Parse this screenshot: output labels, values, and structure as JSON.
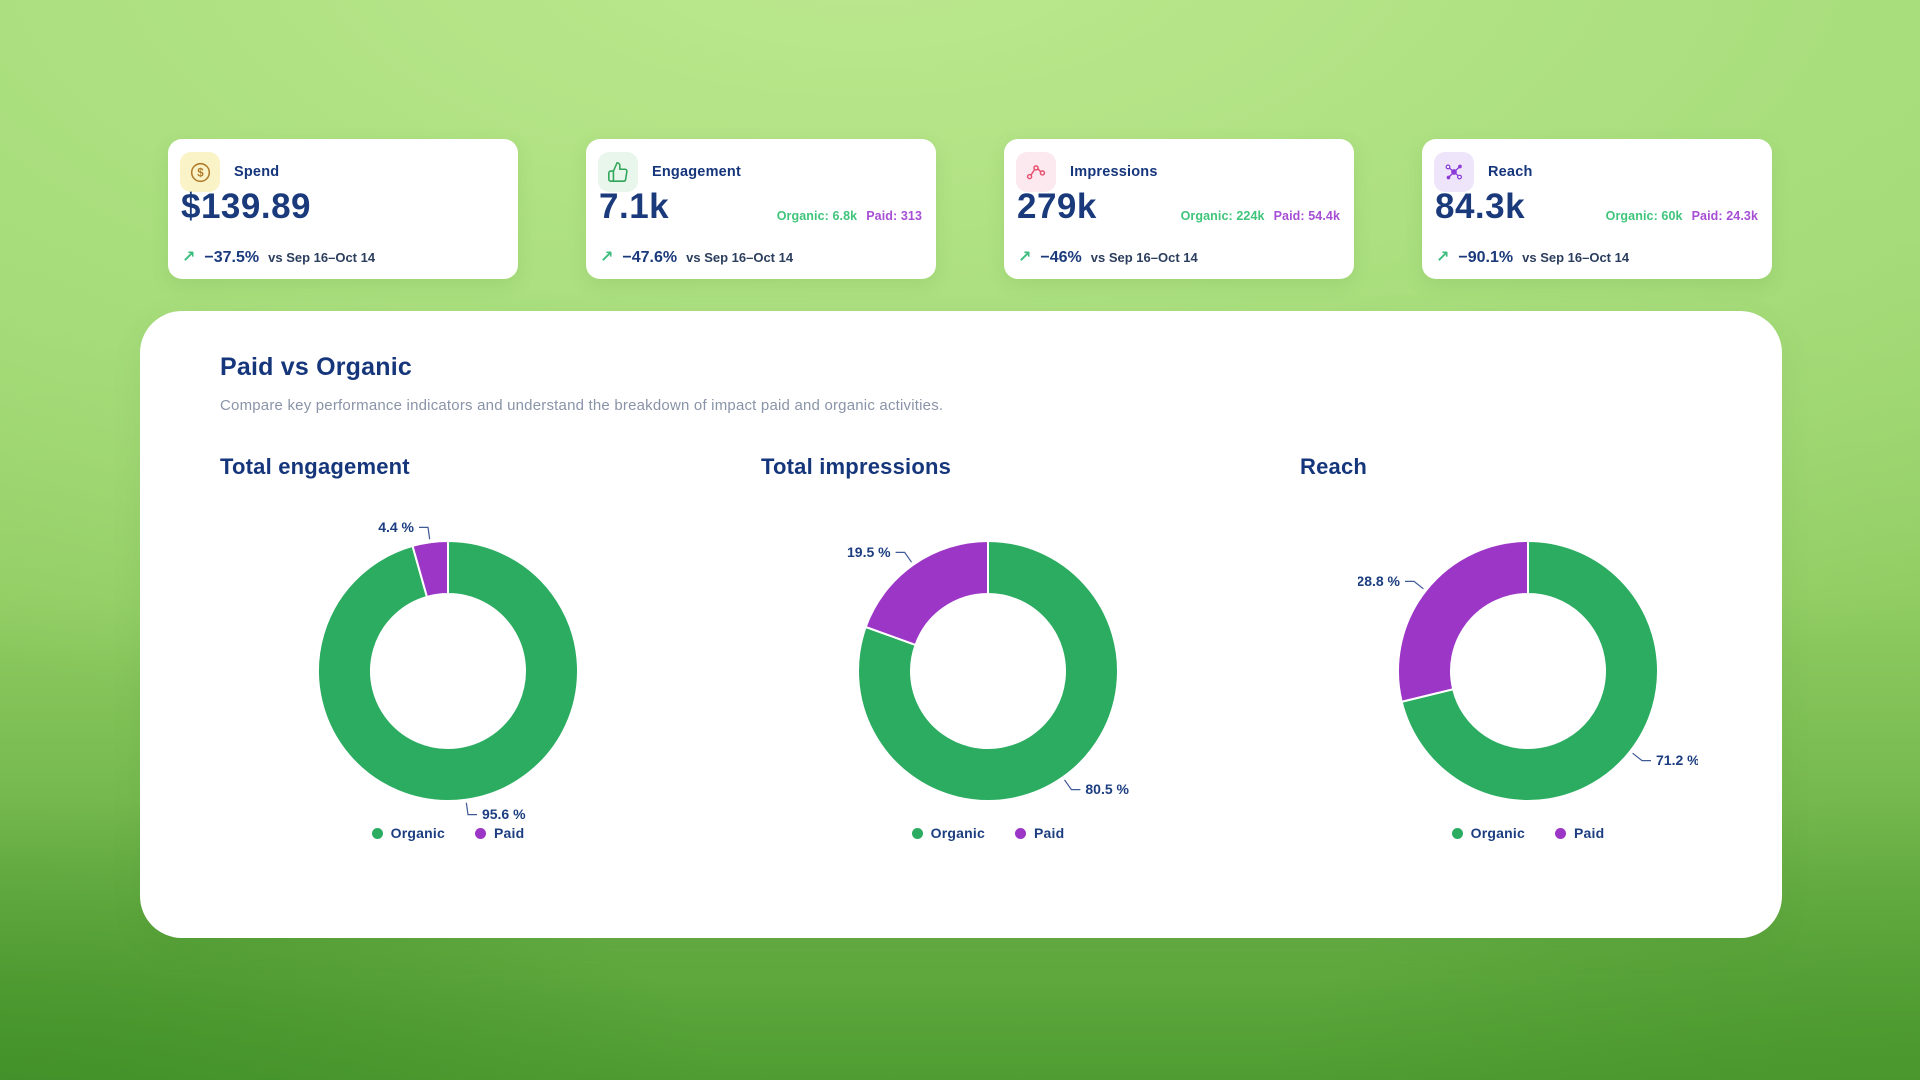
{
  "kpi_cards": [
    {
      "label": "Spend",
      "icon": "dollar-circle-icon",
      "value": "$139.89",
      "organic": "",
      "paid": "",
      "trend_arrow": "↗",
      "change": "−37.5%",
      "compare": "vs Sep 16–Oct 14"
    },
    {
      "label": "Engagement",
      "icon": "thumbs-up-icon",
      "value": "7.1k",
      "organic": "Organic: 6.8k",
      "paid": "Paid: 313",
      "trend_arrow": "↗",
      "change": "−47.6%",
      "compare": "vs Sep 16–Oct 14"
    },
    {
      "label": "Impressions",
      "icon": "scatter-chart-icon",
      "value": "279k",
      "organic": "Organic: 224k",
      "paid": "Paid: 54.4k",
      "trend_arrow": "↗",
      "change": "−46%",
      "compare": "vs Sep 16–Oct 14"
    },
    {
      "label": "Reach",
      "icon": "network-icon",
      "value": "84.3k",
      "organic": "Organic: 60k",
      "paid": "Paid: 24.3k",
      "trend_arrow": "↗",
      "change": "−90.1%",
      "compare": "vs Sep 16–Oct 14"
    }
  ],
  "panel": {
    "title": "Paid vs Organic",
    "subtitle": "Compare key performance indicators and understand the breakdown of impact paid and organic activities."
  },
  "chart_data": [
    {
      "type": "pie",
      "donut": true,
      "title": "Total engagement",
      "unit": "%",
      "legend_position": "bottom",
      "slices": [
        {
          "label": "Organic",
          "value": 95.6,
          "color": "#2bac60"
        },
        {
          "label": "Paid",
          "value": 4.4,
          "color": "#9c36c6"
        }
      ]
    },
    {
      "type": "pie",
      "donut": true,
      "title": "Total impressions",
      "unit": "%",
      "legend_position": "bottom",
      "slices": [
        {
          "label": "Organic",
          "value": 80.5,
          "color": "#2bac60"
        },
        {
          "label": "Paid",
          "value": 19.5,
          "color": "#9c36c6"
        }
      ]
    },
    {
      "type": "pie",
      "donut": true,
      "title": "Reach",
      "unit": "%",
      "legend_position": "bottom",
      "slices": [
        {
          "label": "Organic",
          "value": 71.2,
          "color": "#2bac60"
        },
        {
          "label": "Paid",
          "value": 28.8,
          "color": "#9c36c6"
        }
      ]
    }
  ],
  "colors": {
    "organic": "#2bac60",
    "paid": "#9c36c6",
    "navy": "#1a3a7c",
    "trend_green": "#3cbd7e",
    "organic_text": "#3fc57b",
    "paid_text": "#a74fd4"
  }
}
